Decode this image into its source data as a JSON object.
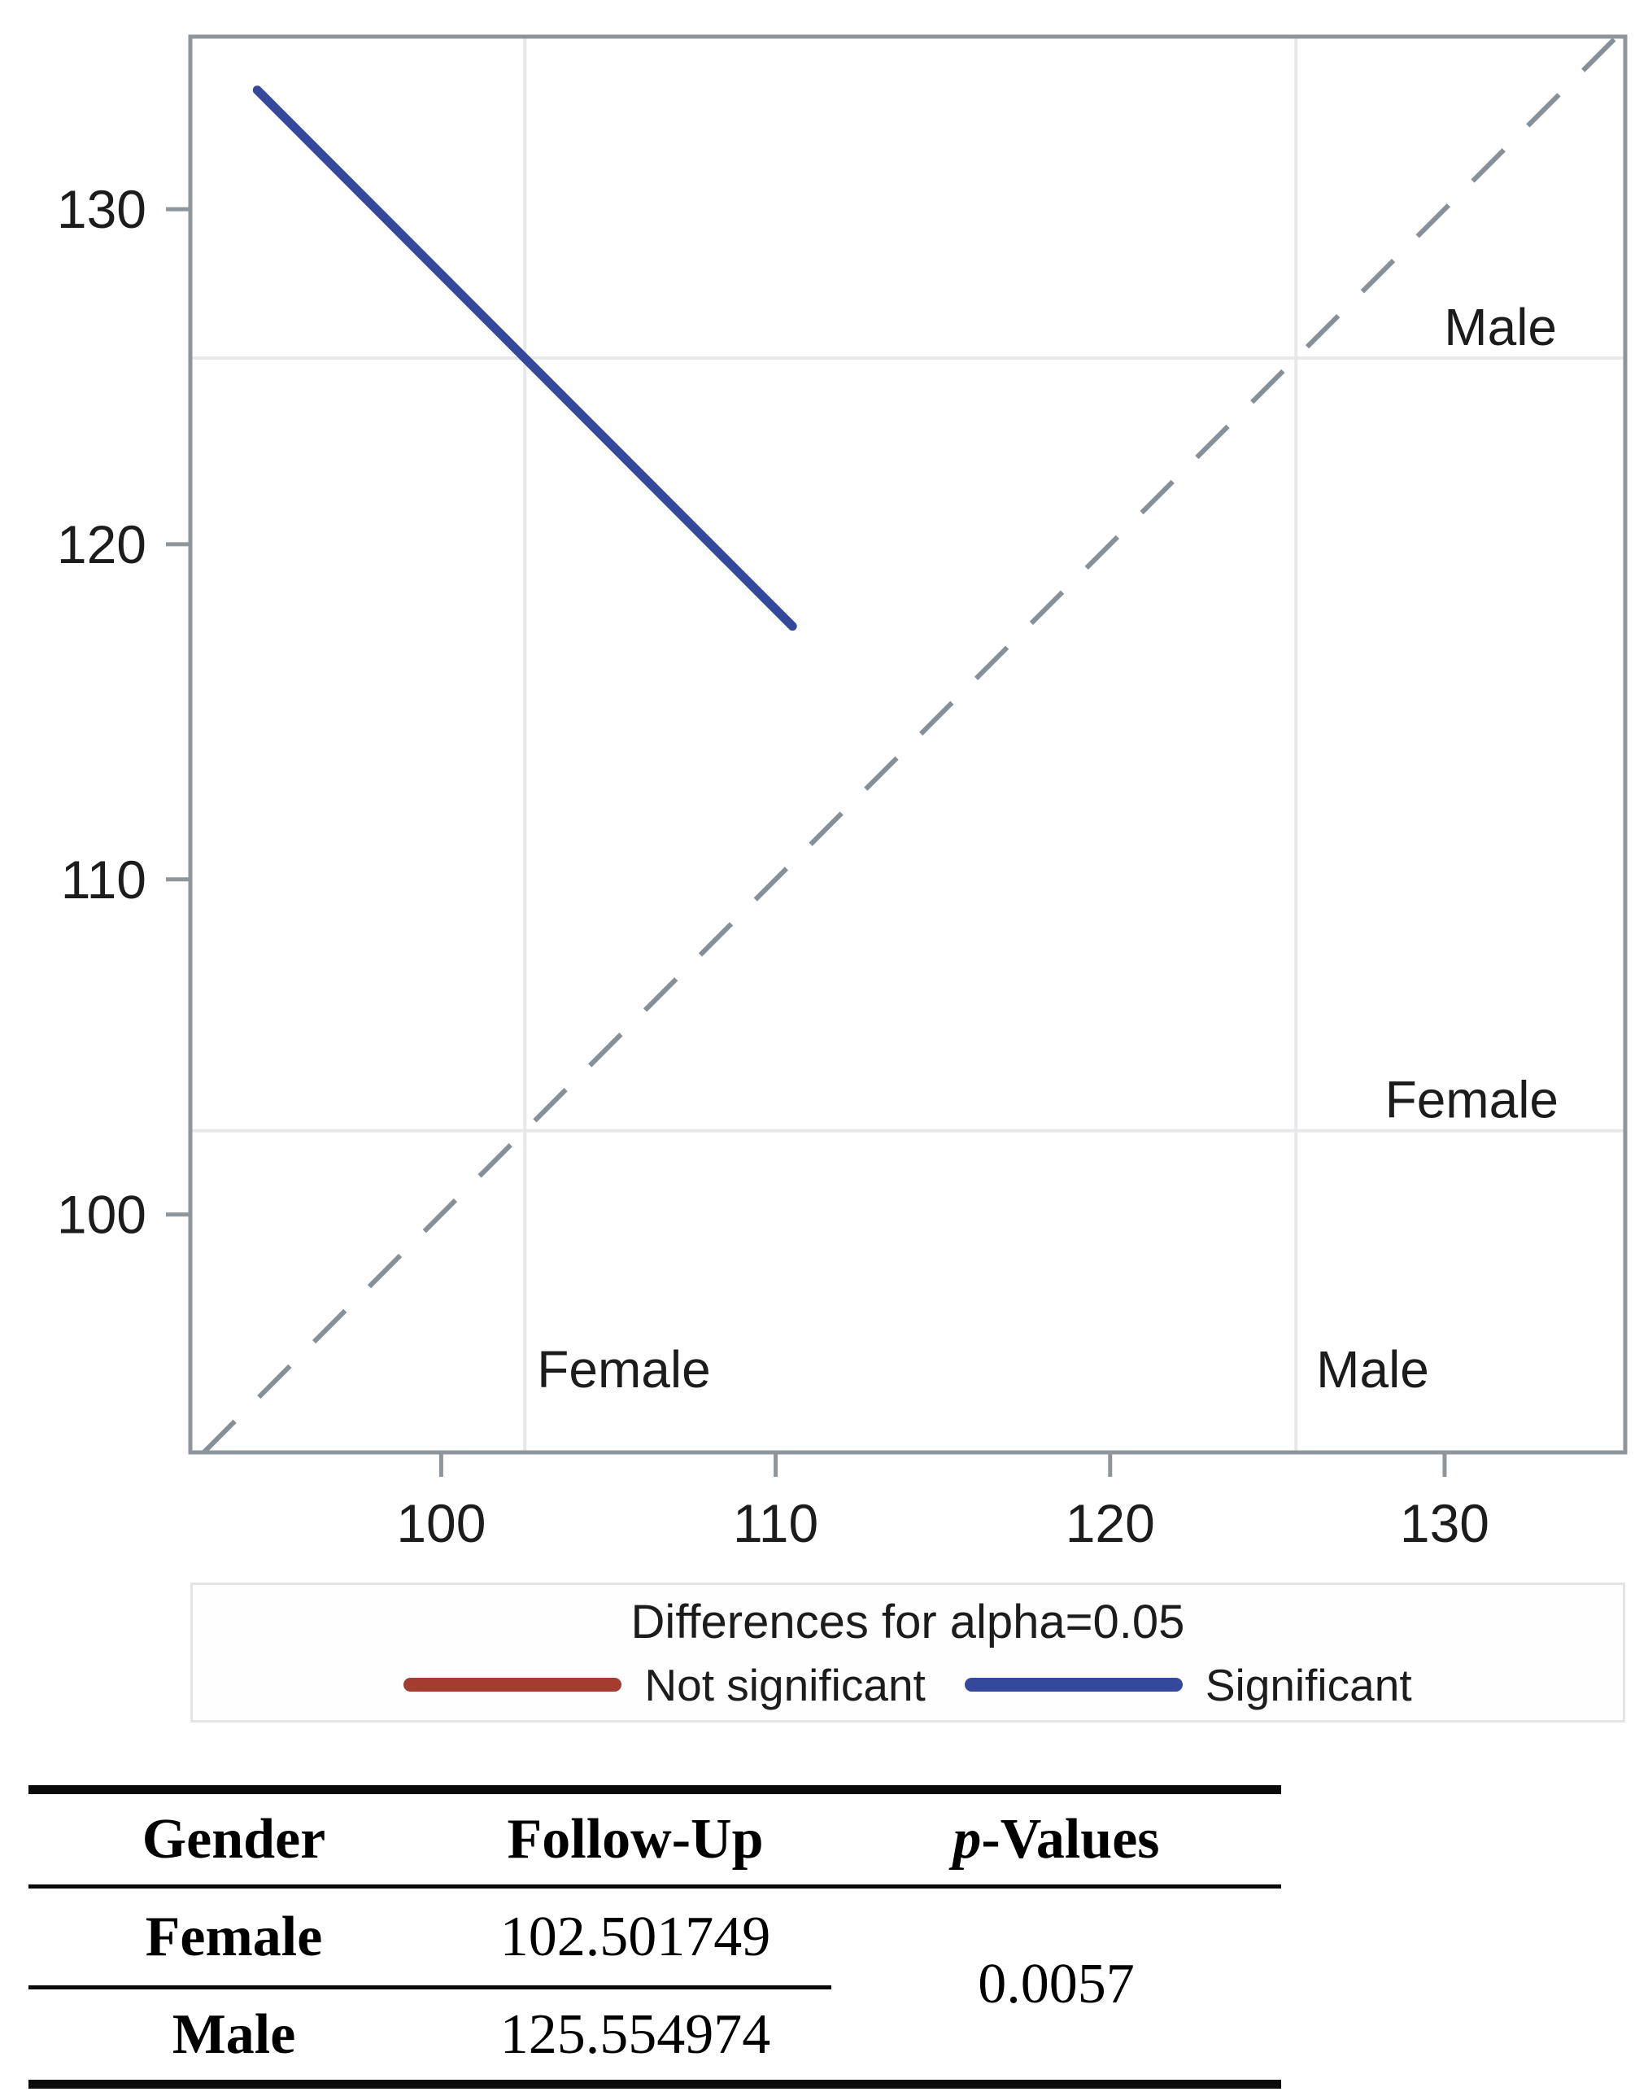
{
  "figure": {
    "background": "#FFFFFF",
    "legend": {
      "title": "Differences for alpha=0.05",
      "items": [
        {
          "label": "Not significant",
          "color": "#A43C30",
          "significant": false
        },
        {
          "label": "Significant",
          "color": "#34489C",
          "significant": true
        }
      ]
    },
    "in_plot_labels": {
      "male_row": "Male",
      "female_row": "Female",
      "female_col": "Female",
      "male_col": "Male"
    }
  },
  "chart_data": {
    "type": "scatter",
    "subtype": "diffogram (mean-mean LS-means comparison plot)",
    "title": "",
    "xlabel": "",
    "ylabel": "",
    "x_ticks": [
      100,
      110,
      120,
      130
    ],
    "y_ticks": [
      100,
      110,
      120,
      130
    ],
    "xlim": [
      92.5,
      135.4
    ],
    "ylim": [
      92.9,
      135.15
    ],
    "grid": "reference lines at group means only",
    "legend_position": "bottom box",
    "groups": [
      {
        "name": "Female",
        "mean": 102.501749
      },
      {
        "name": "Male",
        "mean": 125.554974
      }
    ],
    "reference_line": {
      "type": "identity",
      "equation": "y = x",
      "style": "dashed"
    },
    "comparison_intervals": [
      {
        "pair": "Female vs Male",
        "center": [
          102.501749,
          125.554974
        ],
        "half_width": 8.0,
        "significant": true
      }
    ],
    "colors": {
      "significant": "#34489C",
      "not_significant": "#A43C30",
      "grid": "#E6E8E9",
      "frame": "#8E969C",
      "reference": "#878F97",
      "text": "#1C1C1C"
    }
  },
  "table": {
    "headers": [
      "Gender",
      "Follow-Up",
      "p-Values"
    ],
    "p_header": {
      "italic": "p",
      "rest": "-Values"
    },
    "rows": [
      {
        "gender": "Female",
        "follow_up": "102.501749"
      },
      {
        "gender": "Male",
        "follow_up": "125.554974"
      }
    ],
    "p_value": "0.0057"
  }
}
